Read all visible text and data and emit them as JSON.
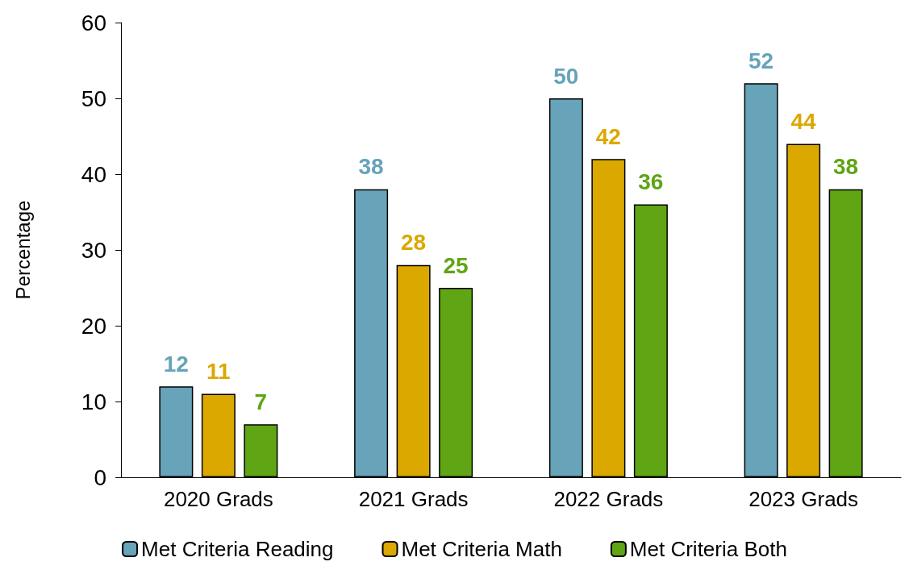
{
  "chart_data": {
    "type": "bar",
    "ylabel": "Percentage",
    "categories": [
      "2020 Grads",
      "2021 Grads",
      "2022 Grads",
      "2023 Grads"
    ],
    "series": [
      {
        "name": "Met Criteria Reading",
        "color": "#67a3b9",
        "values": [
          12,
          38,
          50,
          52
        ]
      },
      {
        "name": "Met Criteria Math",
        "color": "#dba800",
        "values": [
          11,
          28,
          42,
          44
        ]
      },
      {
        "name": "Met Criteria Both",
        "color": "#5fa514",
        "values": [
          7,
          25,
          36,
          38
        ]
      }
    ],
    "ylim": [
      0,
      60
    ],
    "yticks": [
      0,
      10,
      20,
      30,
      40,
      50,
      60
    ],
    "data_labels": true,
    "grid": false,
    "legend": "bottom"
  }
}
